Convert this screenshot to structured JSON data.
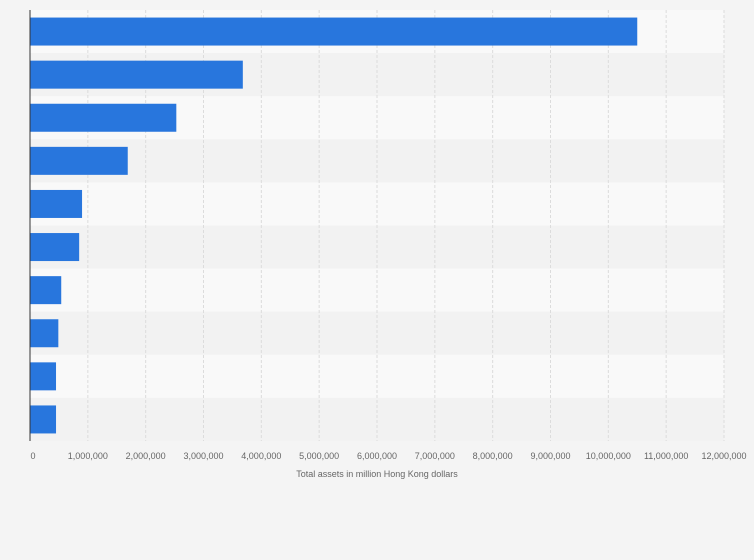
{
  "chart_data": {
    "type": "bar",
    "orientation": "horizontal",
    "categories": [
      "",
      "",
      "",
      "",
      "",
      "",
      "",
      "",
      "",
      ""
    ],
    "values": [
      10500000,
      3680000,
      2530000,
      1690000,
      900000,
      850000,
      540000,
      490000,
      450000,
      450000
    ],
    "xlabel": "Total assets in million Hong Kong dollars",
    "ylabel": "",
    "xlim": [
      0,
      12000000
    ],
    "x_ticks": [
      0,
      1000000,
      2000000,
      3000000,
      4000000,
      5000000,
      6000000,
      7000000,
      8000000,
      9000000,
      10000000,
      11000000,
      12000000
    ],
    "x_tick_labels": [
      "0",
      "1,000,000",
      "2,000,000",
      "3,000,000",
      "4,000,000",
      "5,000,000",
      "6,000,000",
      "7,000,000",
      "8,000,000",
      "9,000,000",
      "10,000,000",
      "11,000,000",
      "12,000,000"
    ],
    "grid": true,
    "legend": "none",
    "colors": {
      "bar": "#2876dd",
      "band_light": "#f9f9f9",
      "band_dark": "#f2f2f2",
      "grid": "#dcdcdc",
      "axis": "#333333",
      "text": "#666666"
    }
  }
}
